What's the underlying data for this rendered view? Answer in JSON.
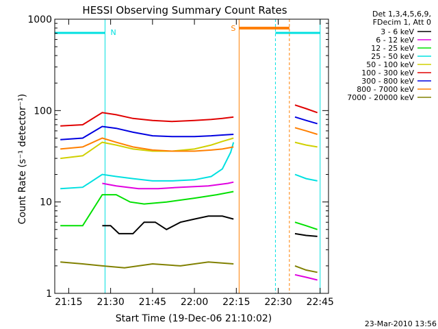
{
  "chart_data": {
    "type": "line",
    "title": "HESSI Observing Summary Count Rates",
    "xlabel": "Start Time (19-Dec-06 21:10:02)",
    "ylabel": "Count Rate (s⁻¹ detector⁻¹)",
    "yscale": "log",
    "ylim": [
      1,
      1000
    ],
    "xlim": [
      "21:10",
      "22:48"
    ],
    "x_ticks": [
      "21:15",
      "21:30",
      "21:45",
      "22:00",
      "22:15",
      "22:30",
      "22:45"
    ],
    "y_ticks": [
      "1",
      "10",
      "100",
      "1000"
    ],
    "legend_header": [
      "Det 1,3,4,5,6,9,",
      "FDecim 1, Att 0"
    ],
    "footer_stamp": "23-Mar-2010 13:56",
    "annotations": [
      "N",
      "S"
    ],
    "series": [
      {
        "name": "3 - 6 keV",
        "color": "#000000",
        "points": [
          [
            "21:27",
            5.5
          ],
          [
            "21:30",
            5.5
          ],
          [
            "21:33",
            4.5
          ],
          [
            "21:38",
            4.5
          ],
          [
            "21:42",
            6
          ],
          [
            "21:46",
            6
          ],
          [
            "21:50",
            5
          ],
          [
            "21:55",
            6
          ],
          [
            "22:00",
            6.5
          ],
          [
            "22:05",
            7
          ],
          [
            "22:10",
            7
          ],
          [
            "22:14",
            6.5
          ],
          [
            "22:36",
            4.5
          ],
          [
            "22:40",
            4.3
          ],
          [
            "22:44",
            4.2
          ]
        ]
      },
      {
        "name": "6 - 12 keV",
        "color": "#e000e0",
        "points": [
          [
            "21:27",
            16
          ],
          [
            "21:32",
            15
          ],
          [
            "21:40",
            14
          ],
          [
            "21:47",
            14
          ],
          [
            "21:55",
            14.5
          ],
          [
            "22:05",
            15
          ],
          [
            "22:12",
            16
          ],
          [
            "22:14",
            16.5
          ],
          [
            "22:36",
            1.6
          ],
          [
            "22:40",
            1.5
          ],
          [
            "22:44",
            1.4
          ]
        ]
      },
      {
        "name": "12 - 25 keV",
        "color": "#00e000",
        "points": [
          [
            "21:12",
            5.5
          ],
          [
            "21:20",
            5.5
          ],
          [
            "21:27",
            12
          ],
          [
            "21:32",
            12
          ],
          [
            "21:37",
            10
          ],
          [
            "21:42",
            9.5
          ],
          [
            "21:50",
            10
          ],
          [
            "22:00",
            11
          ],
          [
            "22:08",
            12
          ],
          [
            "22:14",
            13
          ],
          [
            "22:36",
            6
          ],
          [
            "22:40",
            5.5
          ],
          [
            "22:44",
            5
          ]
        ]
      },
      {
        "name": "25 - 50 keV",
        "color": "#00e0e0",
        "points": [
          [
            "21:12",
            14
          ],
          [
            "21:20",
            14.5
          ],
          [
            "21:27",
            20
          ],
          [
            "21:32",
            19
          ],
          [
            "21:38",
            18
          ],
          [
            "21:45",
            17
          ],
          [
            "21:52",
            17
          ],
          [
            "22:00",
            17.5
          ],
          [
            "22:06",
            19
          ],
          [
            "22:10",
            23
          ],
          [
            "22:13",
            35
          ],
          [
            "22:14",
            45
          ],
          [
            "22:36",
            20
          ],
          [
            "22:40",
            18
          ],
          [
            "22:44",
            17
          ]
        ]
      },
      {
        "name": "50 - 100 keV",
        "color": "#d0d000",
        "points": [
          [
            "21:12",
            30
          ],
          [
            "21:20",
            32
          ],
          [
            "21:27",
            45
          ],
          [
            "21:32",
            42
          ],
          [
            "21:38",
            38
          ],
          [
            "21:45",
            36
          ],
          [
            "21:52",
            36
          ],
          [
            "22:00",
            38
          ],
          [
            "22:06",
            42
          ],
          [
            "22:10",
            46
          ],
          [
            "22:14",
            50
          ],
          [
            "22:36",
            45
          ],
          [
            "22:40",
            42
          ],
          [
            "22:44",
            40
          ]
        ]
      },
      {
        "name": "100 - 300 keV",
        "color": "#e00000",
        "points": [
          [
            "21:12",
            68
          ],
          [
            "21:20",
            70
          ],
          [
            "21:27",
            95
          ],
          [
            "21:32",
            90
          ],
          [
            "21:38",
            82
          ],
          [
            "21:45",
            78
          ],
          [
            "21:52",
            76
          ],
          [
            "22:00",
            78
          ],
          [
            "22:06",
            80
          ],
          [
            "22:10",
            82
          ],
          [
            "22:14",
            85
          ],
          [
            "22:36",
            115
          ],
          [
            "22:40",
            105
          ],
          [
            "22:44",
            95
          ]
        ]
      },
      {
        "name": "300 - 800 keV",
        "color": "#0000e0",
        "points": [
          [
            "21:12",
            48
          ],
          [
            "21:20",
            50
          ],
          [
            "21:27",
            67
          ],
          [
            "21:32",
            64
          ],
          [
            "21:38",
            58
          ],
          [
            "21:45",
            53
          ],
          [
            "21:52",
            52
          ],
          [
            "22:00",
            52
          ],
          [
            "22:06",
            53
          ],
          [
            "22:10",
            54
          ],
          [
            "22:14",
            55
          ],
          [
            "22:36",
            85
          ],
          [
            "22:40",
            78
          ],
          [
            "22:44",
            72
          ]
        ]
      },
      {
        "name": "800 - 7000 keV",
        "color": "#ff7f00",
        "points": [
          [
            "21:12",
            38
          ],
          [
            "21:20",
            40
          ],
          [
            "21:27",
            50
          ],
          [
            "21:32",
            45
          ],
          [
            "21:38",
            40
          ],
          [
            "21:45",
            37
          ],
          [
            "21:52",
            36
          ],
          [
            "22:00",
            36
          ],
          [
            "22:06",
            37
          ],
          [
            "22:10",
            38
          ],
          [
            "22:14",
            40
          ],
          [
            "22:36",
            65
          ],
          [
            "22:40",
            60
          ],
          [
            "22:44",
            55
          ]
        ]
      },
      {
        "name": "7000 - 20000 keV",
        "color": "#808000",
        "points": [
          [
            "21:12",
            2.2
          ],
          [
            "21:20",
            2.1
          ],
          [
            "21:27",
            2
          ],
          [
            "21:35",
            1.9
          ],
          [
            "21:45",
            2.1
          ],
          [
            "21:55",
            2
          ],
          [
            "22:05",
            2.2
          ],
          [
            "22:14",
            2.1
          ],
          [
            "22:36",
            2
          ],
          [
            "22:40",
            1.8
          ],
          [
            "22:44",
            1.7
          ]
        ]
      }
    ],
    "night_intervals": [
      [
        "21:10",
        "21:28"
      ],
      [
        "22:29",
        "22:45"
      ]
    ],
    "saa_intervals": [
      [
        "22:16",
        "22:34"
      ]
    ]
  }
}
